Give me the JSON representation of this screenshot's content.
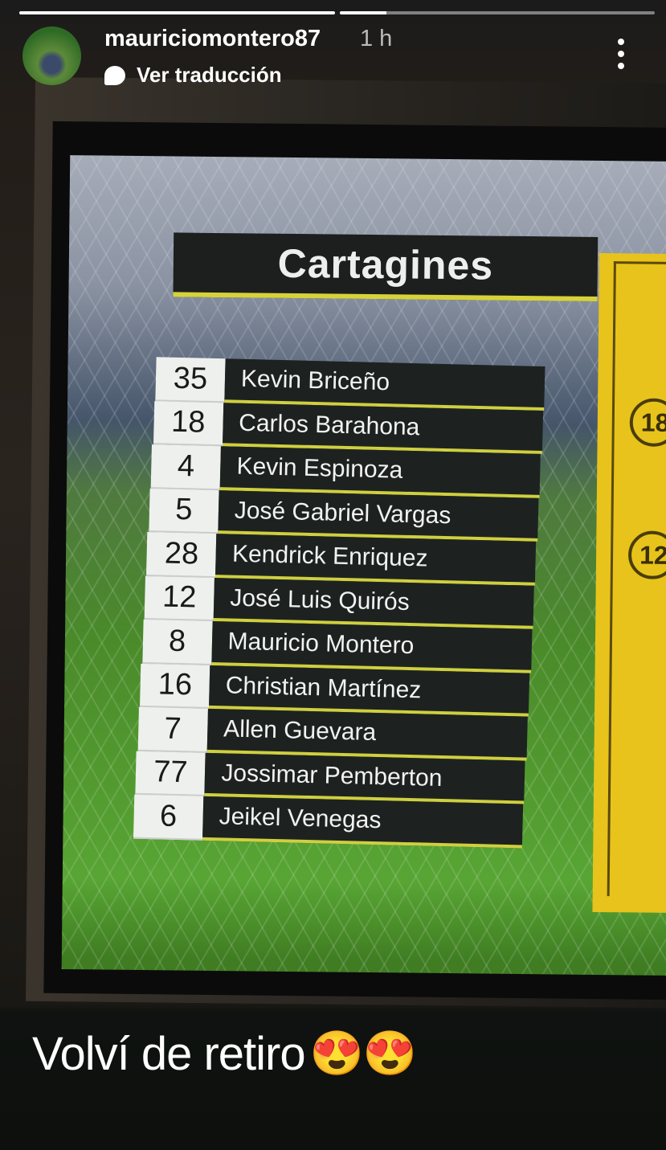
{
  "story": {
    "progress": [
      1,
      0.15
    ],
    "username": "mauriciomontero87",
    "time": "1 h",
    "translate_label": "Ver traducción",
    "caption": "Volví de retiro",
    "caption_emoji": "😍😍"
  },
  "tv": {
    "team": "Cartagines",
    "lineup": [
      {
        "number": "35",
        "name": "Kevin Briceño"
      },
      {
        "number": "18",
        "name": "Carlos Barahona"
      },
      {
        "number": "4",
        "name": "Kevin Espinoza"
      },
      {
        "number": "5",
        "name": "José Gabriel Vargas"
      },
      {
        "number": "28",
        "name": "Kendrick Enriquez"
      },
      {
        "number": "12",
        "name": "José Luis Quirós"
      },
      {
        "number": "8",
        "name": "Mauricio Montero"
      },
      {
        "number": "16",
        "name": "Christian Martínez"
      },
      {
        "number": "7",
        "name": "Allen Guevara"
      },
      {
        "number": "77",
        "name": "Jossimar Pemberton"
      },
      {
        "number": "6",
        "name": "Jeikel Venegas"
      }
    ],
    "side_panel_numbers": [
      "18",
      "12"
    ],
    "accent": "#e8c31b"
  }
}
